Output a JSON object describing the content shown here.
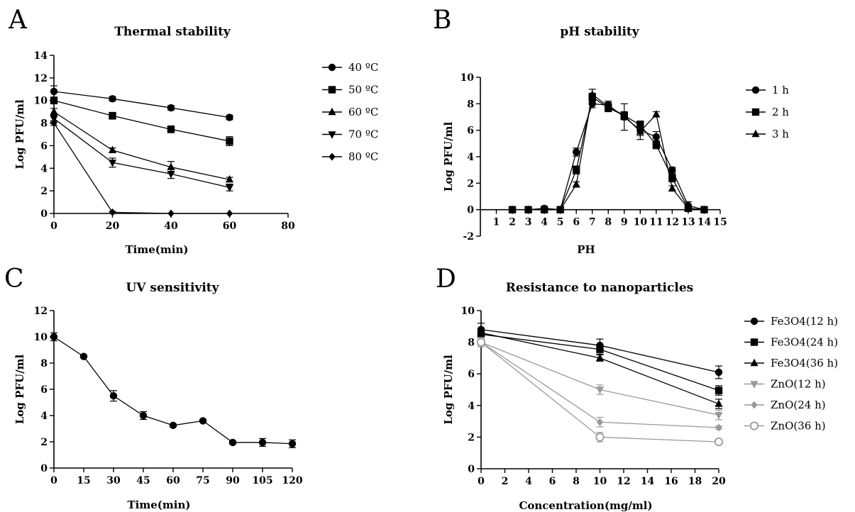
{
  "chart_data": [
    {
      "panel": "A",
      "type": "line",
      "title": "Thermal stability",
      "xlabel": "Time(min)",
      "ylabel": "Log PFU/ml",
      "xlim": [
        0,
        80
      ],
      "ylim": [
        0,
        14
      ],
      "xticks": [
        0,
        20,
        40,
        60,
        80
      ],
      "yticks": [
        0,
        2,
        4,
        6,
        8,
        10,
        12,
        14
      ],
      "legend_position": "right",
      "series": [
        {
          "name": "40 ºC",
          "marker": "circle",
          "color": "#000000",
          "x": [
            0,
            20,
            40,
            60
          ],
          "y": [
            10.8,
            10.15,
            9.35,
            8.5
          ],
          "err": [
            0.5,
            0.2,
            0.2,
            0.2
          ]
        },
        {
          "name": "50 ºC",
          "marker": "square",
          "color": "#000000",
          "x": [
            0,
            20,
            40,
            60
          ],
          "y": [
            10.0,
            8.65,
            7.45,
            6.4
          ],
          "err": [
            0.3,
            0.3,
            0.3,
            0.4
          ]
        },
        {
          "name": "60 ºC",
          "marker": "triangle-up",
          "color": "#000000",
          "x": [
            0,
            20,
            40,
            60
          ],
          "y": [
            9.0,
            5.6,
            4.1,
            3.0
          ],
          "err": [
            0.3,
            0.2,
            0.5,
            0.2
          ]
        },
        {
          "name": "70 ºC",
          "marker": "triangle-down",
          "color": "#000000",
          "x": [
            0,
            20,
            40,
            60
          ],
          "y": [
            8.4,
            4.5,
            3.5,
            2.3
          ],
          "err": [
            0.3,
            0.4,
            0.4,
            0.3
          ]
        },
        {
          "name": "80 ºC",
          "marker": "diamond",
          "color": "#000000",
          "x": [
            0,
            20,
            40,
            60
          ],
          "y": [
            8.0,
            0.1,
            0.0,
            0.0
          ],
          "err": [
            0.2,
            0.1,
            0.0,
            0.0
          ]
        }
      ]
    },
    {
      "panel": "B",
      "type": "line",
      "title": "pH stability",
      "xlabel": "PH",
      "ylabel": "Log PFU/ml",
      "xlim": [
        0,
        15
      ],
      "ylim": [
        -2,
        10
      ],
      "xticks": [
        1,
        2,
        3,
        4,
        5,
        6,
        7,
        8,
        9,
        10,
        11,
        12,
        13,
        14,
        15
      ],
      "yticks": [
        -2,
        0,
        2,
        4,
        6,
        8,
        10
      ],
      "legend_position": "right",
      "series": [
        {
          "name": "1 h",
          "marker": "circle",
          "color": "#000000",
          "x": [
            2,
            3,
            4,
            5,
            6,
            7,
            8,
            9,
            10,
            11,
            12,
            13,
            14
          ],
          "y": [
            0,
            0,
            0.1,
            0,
            4.35,
            8.0,
            7.9,
            7.0,
            6.0,
            5.5,
            3.0,
            0.3,
            0
          ],
          "err": [
            0,
            0,
            0,
            0,
            0.3,
            0.3,
            0.3,
            1.0,
            0.7,
            0.4,
            0.2,
            0.3,
            0
          ]
        },
        {
          "name": "2 h",
          "marker": "square",
          "color": "#000000",
          "x": [
            2,
            3,
            4,
            5,
            6,
            7,
            8,
            9,
            10,
            11,
            12,
            13,
            14
          ],
          "y": [
            0,
            0,
            0,
            0,
            3.0,
            8.5,
            7.7,
            7.1,
            6.4,
            4.9,
            2.4,
            0.1,
            0
          ],
          "err": [
            0,
            0,
            0,
            0,
            0.3,
            0.3,
            0.3,
            0.3,
            0.3,
            0.3,
            0.3,
            0.2,
            0
          ]
        },
        {
          "name": "3 h",
          "marker": "triangle-up",
          "color": "#000000",
          "x": [
            2,
            3,
            4,
            5,
            6,
            7,
            8,
            9,
            10,
            11,
            12,
            13,
            14
          ],
          "y": [
            0,
            0,
            0,
            0,
            1.9,
            8.7,
            7.8,
            7.1,
            5.9,
            7.2,
            1.6,
            0.1,
            0
          ],
          "err": [
            0,
            0,
            0,
            0,
            0.2,
            0.4,
            0.3,
            0.3,
            0.3,
            0.2,
            0.2,
            0.2,
            0
          ]
        }
      ]
    },
    {
      "panel": "C",
      "type": "line",
      "title": "UV sensitivity",
      "xlabel": "Time(min)",
      "ylabel": "Log PFU/ml",
      "xlim": [
        0,
        120
      ],
      "ylim": [
        0,
        12
      ],
      "xticks": [
        0,
        15,
        30,
        45,
        60,
        75,
        90,
        105,
        120
      ],
      "yticks": [
        0,
        2,
        4,
        6,
        8,
        10,
        12
      ],
      "series": [
        {
          "name": "",
          "marker": "circle",
          "color": "#000000",
          "x": [
            0,
            15,
            30,
            45,
            60,
            75,
            90,
            105,
            120
          ],
          "y": [
            10.0,
            8.5,
            5.5,
            4.0,
            3.25,
            3.6,
            1.95,
            1.95,
            1.85
          ],
          "err": [
            0.3,
            0.1,
            0.4,
            0.3,
            0.1,
            0.1,
            0.1,
            0.3,
            0.3
          ]
        }
      ]
    },
    {
      "panel": "D",
      "type": "line",
      "title": "Resistance to nanoparticles",
      "xlabel": "Concentration(mg/ml)",
      "ylabel": "Log PFU/ml",
      "xlim": [
        0,
        20
      ],
      "ylim": [
        0,
        10
      ],
      "xticks": [
        0,
        2,
        4,
        6,
        8,
        10,
        12,
        14,
        16,
        18,
        20
      ],
      "yticks": [
        0,
        2,
        4,
        6,
        8,
        10
      ],
      "legend_position": "right",
      "series": [
        {
          "name": "Fe3O4(12 h)",
          "marker": "circle",
          "color": "#000000",
          "x": [
            0,
            10,
            20
          ],
          "y": [
            8.8,
            7.8,
            6.1
          ],
          "err": [
            0.4,
            0.4,
            0.4
          ]
        },
        {
          "name": "Fe3O4(24 h)",
          "marker": "square",
          "color": "#000000",
          "x": [
            0,
            10,
            20
          ],
          "y": [
            8.5,
            7.55,
            4.95
          ],
          "err": [
            0.3,
            0.3,
            0.3
          ]
        },
        {
          "name": "Fe3O4(36 h)",
          "marker": "triangle-up",
          "color": "#000000",
          "x": [
            0,
            10,
            20
          ],
          "y": [
            8.6,
            7.0,
            4.1
          ],
          "err": [
            0.3,
            0.2,
            0.3
          ]
        },
        {
          "name": "ZnO(12 h)",
          "marker": "triangle-down",
          "color": "#999999",
          "x": [
            0,
            10,
            20
          ],
          "y": [
            8.0,
            5.0,
            3.4
          ],
          "err": [
            0.3,
            0.3,
            0.3
          ]
        },
        {
          "name": "ZnO(24 h)",
          "marker": "diamond",
          "color": "#999999",
          "x": [
            0,
            10,
            20
          ],
          "y": [
            8.0,
            2.95,
            2.6
          ],
          "err": [
            0.2,
            0.3,
            0.1
          ]
        },
        {
          "name": "ZnO(36 h)",
          "marker": "circle-open",
          "color": "#999999",
          "x": [
            0,
            10,
            20
          ],
          "y": [
            8.0,
            2.0,
            1.7
          ],
          "err": [
            0.2,
            0.3,
            0.1
          ]
        }
      ]
    }
  ],
  "panel_letters": [
    "A",
    "B",
    "C",
    "D"
  ]
}
